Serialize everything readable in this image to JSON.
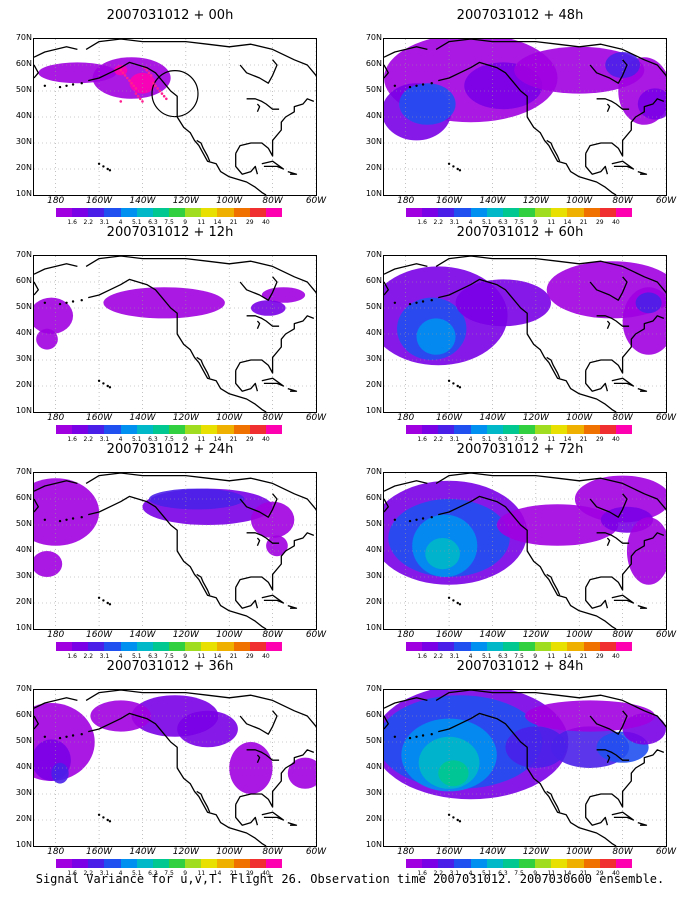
{
  "panels": [
    {
      "title": "2007031012 + 00h",
      "lead_h": 0
    },
    {
      "title": "2007031012 + 48h",
      "lead_h": 48
    },
    {
      "title": "2007031012 + 12h",
      "lead_h": 12
    },
    {
      "title": "2007031012 + 60h",
      "lead_h": 60
    },
    {
      "title": "2007031012 + 24h",
      "lead_h": 24
    },
    {
      "title": "2007031012 + 72h",
      "lead_h": 72
    },
    {
      "title": "2007031012 + 36h",
      "lead_h": 36
    },
    {
      "title": "2007031012 + 84h",
      "lead_h": 84
    }
  ],
  "lat_labels": [
    "70N",
    "60N",
    "50N",
    "40N",
    "30N",
    "20N",
    "10N"
  ],
  "lon_labels": [
    "180",
    "160W",
    "140W",
    "120W",
    "100W",
    "80W",
    "60W"
  ],
  "colorbar": {
    "labels": [
      "1.6",
      "2.2",
      "3.1",
      "4",
      "5.1",
      "6.3",
      "7.5",
      "9",
      "11",
      "14",
      "21",
      "29",
      "40"
    ],
    "colors": [
      "#a000e0",
      "#7a00e6",
      "#4a20e8",
      "#2050f0",
      "#0090f0",
      "#00b8c8",
      "#00c890",
      "#30d040",
      "#a0dc20",
      "#e8e000",
      "#f0b000",
      "#f07000",
      "#f03030",
      "#ff00b0"
    ]
  },
  "caption": "Signal Variance for u,v,T. Flight 26. Observation time 2007031012. 2007030600 ensemble."
}
